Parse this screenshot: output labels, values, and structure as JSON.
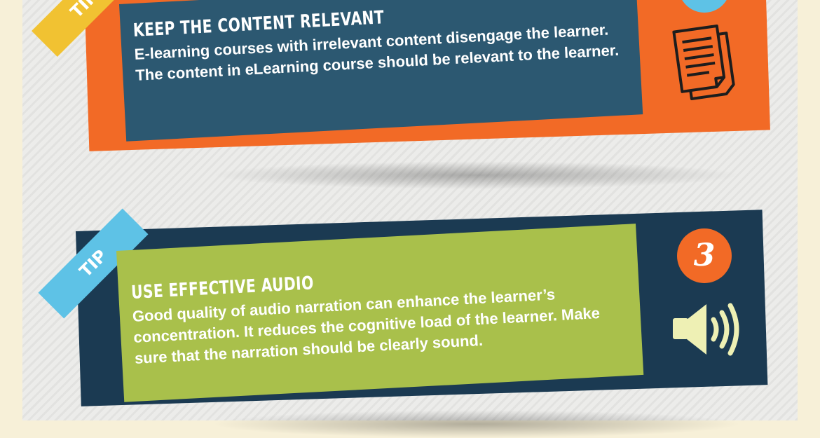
{
  "tip_one": {
    "ribbon_label": "TIP",
    "heading": "KEEP THE CONTENT RELEVANT",
    "description": "E-learning courses with irrelevant content disengage the learner. The content in eLearning course should be relevant to the learner.",
    "icon": "document-icon",
    "colors": {
      "card": "#f26a26",
      "panel": "#2c5871",
      "ribbon": "#f1c232",
      "badge": "#5ec2e6"
    }
  },
  "tip_three": {
    "ribbon_label": "TIP",
    "number": "3",
    "heading": "USE EFFECTIVE AUDIO",
    "description": "Good quality of audio narration can enhance the learner’s concentration. It reduces the cognitive load of the learner. Make sure that the narration should be clearly sound.",
    "icon": "speaker-icon",
    "colors": {
      "card": "#1b3a52",
      "panel": "#a9c04b",
      "ribbon": "#5ec2e6",
      "badge": "#f26a26"
    }
  }
}
